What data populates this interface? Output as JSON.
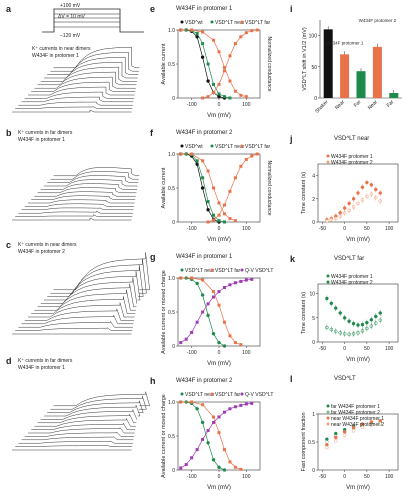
{
  "colors": {
    "green": "#1e8a4c",
    "orange": "#e8734a",
    "red": "#c0392b",
    "black": "#111111",
    "magenta": "#a03ab5",
    "peach": "#f0a07a"
  },
  "panel_a": {
    "letter": "a",
    "protocol": [
      "+100 mV",
      "ΔV = 10 mV",
      "−120 mV"
    ],
    "caption": [
      "K⁺ currents in near dimers",
      "W434F in protomer 1"
    ]
  },
  "panel_b": {
    "letter": "b",
    "caption": [
      "K⁺ currents in far dimers",
      "W434F in protomer 1"
    ]
  },
  "panel_c": {
    "letter": "c",
    "caption": [
      "K⁺ currents in near dimers",
      "W434F in protomer 2"
    ]
  },
  "panel_d": {
    "letter": "d",
    "caption": [
      "K⁺ currents in far dimers",
      "W434F in protomer 1"
    ]
  },
  "panel_e": {
    "letter": "e",
    "title": "W434F in protomer 1",
    "legend": [
      "VSD^wt",
      "VSD^LT near",
      "VSD^LT far"
    ],
    "ylabel": "Available current",
    "ylabel2": "Normalized conductance",
    "xlabel": "Vm (mV)",
    "yticks": [
      "0",
      "0.5",
      "1.0"
    ],
    "xticks": [
      "-100",
      "0",
      "100"
    ]
  },
  "panel_f": {
    "letter": "f",
    "title": "W434F in protomer 2",
    "legend": [
      "VSD^wt",
      "VSD^LT near",
      "VSD^LT far"
    ],
    "ylabel": "Available current",
    "ylabel2": "Normalized conductance",
    "xlabel": "Vm (mV)",
    "yticks": [
      "0",
      "0.5",
      "1.0"
    ],
    "xticks": [
      "-100",
      "0",
      "100"
    ]
  },
  "panel_g": {
    "letter": "g",
    "title": "W434F in protomer 1",
    "legend": [
      "VSD^LT near",
      "VSD^LT far",
      "Q-V VSD^LT"
    ],
    "ylabel": "Available current or moved charge",
    "xlabel": "Vm (mV)",
    "yticks": [
      "0",
      "0.5",
      "1.0"
    ],
    "xticks": [
      "-100",
      "0",
      "100"
    ]
  },
  "panel_h": {
    "letter": "h",
    "title": "W434F in protomer 2",
    "legend": [
      "VSD^LT near",
      "VSD^LT far",
      "Q-V VSD^LT"
    ],
    "ylabel": "Available current or moved charge",
    "xlabel": "Vm (mV)",
    "yticks": [
      "0",
      "0.5",
      "1.0"
    ],
    "xticks": [
      "-100",
      "0",
      "100"
    ]
  },
  "panel_i": {
    "letter": "i",
    "ylabel": "VSD^LT shift in V1/2 (mV)",
    "yticks": [
      "0",
      "50",
      "100"
    ],
    "group_labels": [
      "W434F protomer 1",
      "W434F protomer 2"
    ]
  },
  "panel_j": {
    "letter": "j",
    "title": "VSD^LT near",
    "legend": [
      "W434F protomer 1",
      "W434F protomer 2"
    ],
    "ylabel": "Time constant (s)",
    "xlabel": "Vm (mV)",
    "yticks": [
      "0",
      "2",
      "4"
    ],
    "xticks": [
      "-50",
      "0",
      "50",
      "100"
    ]
  },
  "panel_k": {
    "letter": "k",
    "title": "VSD^LT far",
    "legend": [
      "W434F protomer 1",
      "W434F protomer 2"
    ],
    "ylabel": "Time constant (s)",
    "xlabel": "Vm (mV)",
    "yticks": [
      "0",
      "5",
      "10"
    ],
    "xticks": [
      "-50",
      "0",
      "50",
      "100"
    ]
  },
  "panel_l": {
    "letter": "l",
    "title": "VSD^LT",
    "legend": [
      "far  W434F protomer 1",
      "far  W434F protomer 2",
      "near W434F protomer 1",
      "near W434F protomer 2"
    ],
    "ylabel": "Fast component fraction",
    "xlabel": "Vm (mV)",
    "yticks": [
      "0",
      "0.5",
      "1"
    ],
    "xticks": [
      "-50",
      "0",
      "50",
      "100"
    ]
  },
  "chart_data": [
    {
      "panel": "e",
      "type": "line",
      "xlim": [
        -150,
        150
      ],
      "ylim": [
        0,
        1
      ],
      "series": [
        {
          "name": "VSD^wt",
          "color": "#111111",
          "x": [
            -140,
            -120,
            -100,
            -80,
            -60,
            -40,
            -20,
            0,
            20
          ],
          "y": [
            1.0,
            1.0,
            0.98,
            0.9,
            0.6,
            0.25,
            0.08,
            0.02,
            0.0
          ]
        },
        {
          "name": "VSD^LT near",
          "color": "#1e8a4c",
          "x": [
            -140,
            -120,
            -100,
            -80,
            -60,
            -40,
            -20,
            0,
            20,
            40
          ],
          "y": [
            1.0,
            1.0,
            0.99,
            0.95,
            0.8,
            0.5,
            0.2,
            0.06,
            0.02,
            0.0
          ]
        },
        {
          "name": "VSD^LT far",
          "color": "#e8734a",
          "x": [
            -140,
            -100,
            -60,
            -20,
            0,
            20,
            40,
            60,
            80,
            100
          ],
          "y": [
            1.0,
            1.0,
            0.97,
            0.85,
            0.68,
            0.45,
            0.25,
            0.1,
            0.04,
            0.02
          ]
        },
        {
          "name": "conductance",
          "color": "#e8734a",
          "x": [
            -60,
            -40,
            -20,
            0,
            20,
            40,
            60,
            80,
            100,
            120,
            140
          ],
          "y": [
            0.0,
            0.02,
            0.08,
            0.2,
            0.4,
            0.62,
            0.8,
            0.9,
            0.96,
            0.99,
            1.0
          ]
        }
      ]
    },
    {
      "panel": "f",
      "type": "line",
      "xlim": [
        -150,
        150
      ],
      "ylim": [
        0,
        1
      ],
      "series": [
        {
          "name": "VSD^wt",
          "color": "#111111",
          "x": [
            -140,
            -120,
            -100,
            -80,
            -60,
            -40,
            -20,
            0
          ],
          "y": [
            1.0,
            1.0,
            0.97,
            0.85,
            0.5,
            0.18,
            0.04,
            0.0
          ]
        },
        {
          "name": "VSD^LT near",
          "color": "#1e8a4c",
          "x": [
            -140,
            -120,
            -100,
            -80,
            -60,
            -40,
            -20,
            0,
            20
          ],
          "y": [
            1.0,
            1.0,
            0.99,
            0.9,
            0.65,
            0.3,
            0.1,
            0.02,
            0.0
          ]
        },
        {
          "name": "VSD^LT far",
          "color": "#e8734a",
          "x": [
            -140,
            -100,
            -60,
            -40,
            -20,
            0,
            20,
            40,
            60
          ],
          "y": [
            1.0,
            1.0,
            0.9,
            0.75,
            0.5,
            0.28,
            0.12,
            0.05,
            0.02
          ]
        },
        {
          "name": "conductance",
          "color": "#e8734a",
          "x": [
            -40,
            -20,
            0,
            20,
            40,
            60,
            80,
            100,
            120,
            140
          ],
          "y": [
            0.0,
            0.03,
            0.1,
            0.25,
            0.45,
            0.65,
            0.82,
            0.92,
            0.97,
            1.0
          ]
        }
      ]
    },
    {
      "panel": "g",
      "type": "line",
      "xlim": [
        -150,
        150
      ],
      "ylim": [
        0,
        1
      ],
      "series": [
        {
          "name": "VSD^LT near",
          "color": "#1e8a4c",
          "x": [
            -140,
            -120,
            -100,
            -80,
            -60,
            -40,
            -20,
            0,
            20
          ],
          "y": [
            1.0,
            1.0,
            0.98,
            0.92,
            0.75,
            0.45,
            0.18,
            0.05,
            0.0
          ]
        },
        {
          "name": "VSD^LT far",
          "color": "#e8734a",
          "x": [
            -140,
            -100,
            -60,
            -20,
            0,
            20,
            40,
            60,
            80
          ],
          "y": [
            1.0,
            1.0,
            0.97,
            0.8,
            0.6,
            0.35,
            0.15,
            0.05,
            0.02
          ]
        },
        {
          "name": "Q-V VSD^LT",
          "color": "#a03ab5",
          "x": [
            -140,
            -120,
            -100,
            -80,
            -60,
            -40,
            -20,
            0,
            20,
            40,
            60,
            80,
            100,
            120
          ],
          "y": [
            0.05,
            0.1,
            0.2,
            0.35,
            0.5,
            0.62,
            0.72,
            0.8,
            0.86,
            0.9,
            0.93,
            0.95,
            0.97,
            0.98
          ]
        }
      ]
    },
    {
      "panel": "h",
      "type": "line",
      "xlim": [
        -150,
        150
      ],
      "ylim": [
        0,
        1
      ],
      "series": [
        {
          "name": "VSD^LT near",
          "color": "#1e8a4c",
          "x": [
            -140,
            -120,
            -100,
            -80,
            -60,
            -40,
            -20,
            0,
            20
          ],
          "y": [
            1.0,
            1.0,
            0.98,
            0.9,
            0.7,
            0.4,
            0.15,
            0.04,
            0.0
          ]
        },
        {
          "name": "VSD^LT far",
          "color": "#e8734a",
          "x": [
            -140,
            -100,
            -60,
            -20,
            0,
            20,
            40,
            60,
            80
          ],
          "y": [
            1.0,
            1.0,
            0.96,
            0.78,
            0.55,
            0.3,
            0.12,
            0.04,
            0.01
          ]
        },
        {
          "name": "Q-V VSD^LT",
          "color": "#a03ab5",
          "x": [
            -140,
            -120,
            -100,
            -80,
            -60,
            -40,
            -20,
            0,
            20,
            40,
            60,
            80,
            100,
            120
          ],
          "y": [
            0.03,
            0.08,
            0.18,
            0.3,
            0.45,
            0.58,
            0.7,
            0.78,
            0.85,
            0.9,
            0.93,
            0.95,
            0.97,
            0.98
          ]
        }
      ]
    },
    {
      "panel": "i",
      "type": "bar",
      "categories": [
        "Shaker",
        "Near",
        "Far",
        "Near",
        "Far"
      ],
      "values": [
        110,
        70,
        43,
        82,
        8
      ],
      "colors": [
        "#111111",
        "#e8734a",
        "#1e8a4c",
        "#e8734a",
        "#1e8a4c"
      ],
      "ylim": [
        0,
        125
      ]
    },
    {
      "panel": "j",
      "type": "scatter",
      "xlim": [
        -60,
        120
      ],
      "ylim": [
        0,
        5
      ],
      "series": [
        {
          "name": "W434F protomer 1",
          "color": "#e8734a",
          "x": [
            -40,
            -30,
            -20,
            -10,
            0,
            10,
            20,
            30,
            40,
            50,
            60,
            70,
            80
          ],
          "y": [
            0.2,
            0.3,
            0.5,
            0.8,
            1.2,
            1.6,
            2.0,
            2.5,
            3.0,
            3.4,
            3.2,
            2.8,
            2.5
          ]
        },
        {
          "name": "W434F protomer 2",
          "color": "#f0a07a",
          "x": [
            -40,
            -30,
            -20,
            -10,
            0,
            10,
            20,
            30,
            40,
            50,
            60,
            70,
            80
          ],
          "y": [
            0.1,
            0.2,
            0.3,
            0.5,
            0.8,
            1.0,
            1.3,
            1.6,
            1.9,
            2.2,
            2.4,
            2.1,
            1.8
          ]
        }
      ]
    },
    {
      "panel": "k",
      "type": "scatter",
      "xlim": [
        -60,
        120
      ],
      "ylim": [
        0,
        12
      ],
      "series": [
        {
          "name": "W434F protomer 1",
          "color": "#1e8a4c",
          "x": [
            -40,
            -30,
            -20,
            -10,
            0,
            10,
            20,
            30,
            40,
            50,
            60,
            70,
            80
          ],
          "y": [
            9.0,
            8.0,
            7.0,
            6.0,
            5.0,
            4.3,
            3.8,
            3.5,
            3.6,
            4.0,
            4.6,
            5.3,
            6.0
          ]
        },
        {
          "name": "W434F protomer 2",
          "color": "#1e8a4c",
          "x": [
            -40,
            -30,
            -20,
            -10,
            0,
            10,
            20,
            30,
            40,
            50,
            60,
            70,
            80
          ],
          "y": [
            3.0,
            2.6,
            2.2,
            1.9,
            1.7,
            1.6,
            1.7,
            1.9,
            2.3,
            2.8,
            3.3,
            3.9,
            4.5
          ]
        }
      ]
    },
    {
      "panel": "l",
      "type": "scatter",
      "xlim": [
        -60,
        120
      ],
      "ylim": [
        0,
        1
      ],
      "series": [
        {
          "name": "far W434F protomer 1",
          "color": "#1e8a4c",
          "x": [
            -40,
            -20,
            0,
            20,
            40,
            60,
            80
          ],
          "y": [
            0.55,
            0.65,
            0.72,
            0.78,
            0.82,
            0.84,
            0.85
          ]
        },
        {
          "name": "far W434F protomer 2",
          "color": "#7fbf94",
          "x": [
            -40,
            -20,
            0,
            20,
            40,
            60,
            80
          ],
          "y": [
            0.5,
            0.6,
            0.68,
            0.74,
            0.78,
            0.8,
            0.82
          ]
        },
        {
          "name": "near W434F protomer 1",
          "color": "#e8734a",
          "x": [
            -40,
            -20,
            0,
            20,
            40,
            60,
            80
          ],
          "y": [
            0.45,
            0.58,
            0.68,
            0.76,
            0.82,
            0.86,
            0.88
          ]
        },
        {
          "name": "near W434F protomer 2",
          "color": "#f0a07a",
          "x": [
            -40,
            -20,
            0,
            20,
            40,
            60,
            80
          ],
          "y": [
            0.4,
            0.52,
            0.62,
            0.7,
            0.76,
            0.8,
            0.83
          ]
        }
      ]
    }
  ]
}
